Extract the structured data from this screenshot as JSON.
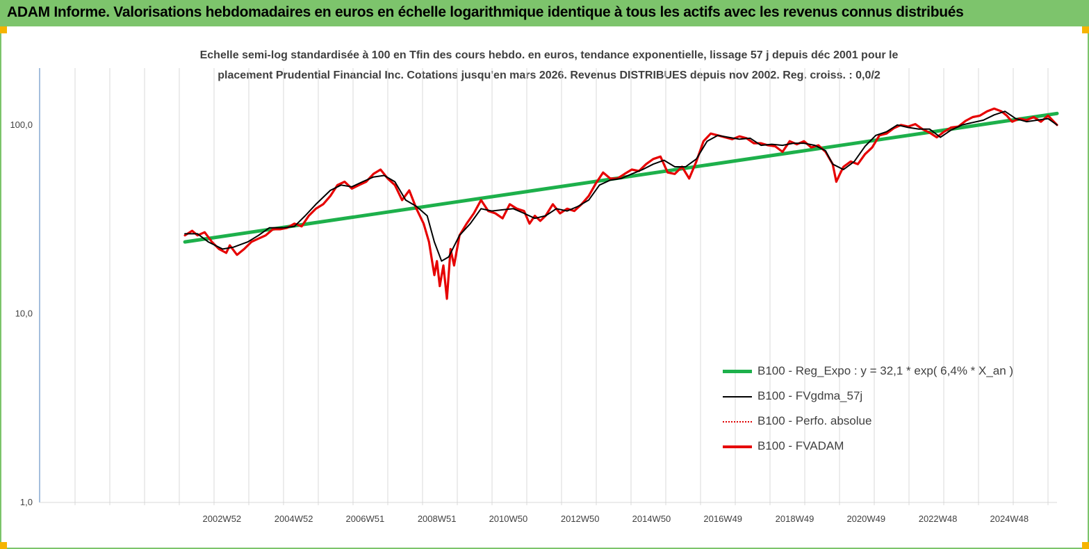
{
  "header": {
    "title": "ADAM Informe. Valorisations hebdomadaires en euros en échelle logarithmique identique à tous les actifs avec les revenus connus distribués"
  },
  "colors": {
    "header_bg": "#7dc46c",
    "accent_corner": "#f5b400",
    "trend": "#1db04b",
    "smooth": "#000000",
    "perf": "#e00000",
    "fvadam": "#e60000"
  },
  "chart_data": {
    "type": "line",
    "title": "Echelle semi-log standardisée à 100 en Tfin des cours hebdo. en euros, tendance exponentielle, lissage 57 j depuis déc 2001 pour le placement Prudential Financial Inc. Cotations jusqu'en mars 2026. Revenus DISTRIBUES depuis nov 2002. Reg. croiss. : 0,0/2",
    "title_lines": [
      "Echelle semi-log standardisée à 100 en Tfin des cours hebdo. en euros, tendance exponentielle, lissage 57 j depuis déc 2001 pour le",
      "placement Prudential Financial Inc. Cotations jusqu'en mars 2026. Revenus DISTRIBUES depuis nov 2002. Reg. croiss. : 0,0/2"
    ],
    "yscale": "log",
    "ylim": [
      1,
      200
    ],
    "y_ticks": [
      1,
      10,
      100
    ],
    "y_tick_labels": [
      "1,0",
      "10,0",
      "100,0"
    ],
    "xlim": [
      1997.9,
      2026.25
    ],
    "x_ticks": [
      2002.98,
      2004.98,
      2006.97,
      2008.97,
      2010.96,
      2012.96,
      2014.95,
      2016.94,
      2018.94,
      2020.93,
      2022.93,
      2024.92
    ],
    "x_tick_labels": [
      "2002W52",
      "2004W52",
      "2006W51",
      "2008W51",
      "2010W50",
      "2012W50",
      "2014W50",
      "2016W49",
      "2018W49",
      "2020W49",
      "2022W48",
      "2024W48"
    ],
    "grid": "vertical",
    "legend_position": "bottom-right",
    "series": [
      {
        "name": "B100 - Reg_Expo : y = 32,1 * exp( 6,4% *  X_an )",
        "style": "thick-green",
        "x": [
          2001.95,
          2026.25
        ],
        "y": [
          24,
          115
        ]
      },
      {
        "name": "B100 - FVgdma_57j",
        "style": "thin-black",
        "x": [
          2001.95,
          2002.3,
          2002.6,
          2003.0,
          2003.3,
          2003.7,
          2004.0,
          2004.3,
          2004.7,
          2005.0,
          2005.3,
          2005.6,
          2006.0,
          2006.3,
          2006.6,
          2006.9,
          2007.2,
          2007.5,
          2007.8,
          2008.1,
          2008.4,
          2008.7,
          2008.9,
          2009.1,
          2009.3,
          2009.6,
          2009.9,
          2010.2,
          2010.5,
          2010.8,
          2011.1,
          2011.4,
          2011.7,
          2012.0,
          2012.3,
          2012.6,
          2012.9,
          2013.2,
          2013.5,
          2013.8,
          2014.1,
          2014.4,
          2014.7,
          2015.0,
          2015.3,
          2015.6,
          2015.9,
          2016.2,
          2016.5,
          2016.8,
          2017.1,
          2017.4,
          2017.7,
          2018.0,
          2018.3,
          2018.6,
          2018.9,
          2019.2,
          2019.5,
          2019.8,
          2020.0,
          2020.3,
          2020.6,
          2020.9,
          2021.2,
          2021.5,
          2021.8,
          2022.1,
          2022.4,
          2022.7,
          2023.0,
          2023.3,
          2023.6,
          2023.9,
          2024.2,
          2024.5,
          2024.8,
          2025.1,
          2025.4,
          2025.7,
          2026.0,
          2026.25
        ],
        "y": [
          26.5,
          26.5,
          24,
          22,
          22.5,
          24,
          26,
          28.5,
          28.5,
          29,
          33,
          38,
          45,
          48,
          47,
          50,
          53,
          54,
          50,
          40,
          37,
          33,
          24,
          19,
          20,
          26,
          30,
          36,
          35,
          35.5,
          36,
          34,
          32,
          33,
          36,
          35,
          37,
          40,
          48,
          51,
          52,
          55,
          58,
          62,
          65,
          60,
          60,
          66,
          82,
          88,
          86,
          84,
          85,
          78,
          79,
          78,
          80,
          80,
          78,
          73,
          62,
          58,
          64,
          77,
          88,
          92,
          100,
          97,
          95,
          95,
          86,
          94,
          100,
          103,
          106,
          113,
          118,
          108,
          104,
          106,
          108,
          100
        ]
      },
      {
        "name": "B100 - Perfo. absolue",
        "style": "dotted-red",
        "x": [],
        "y": []
      },
      {
        "name": "B100 - FVADAM",
        "style": "thick-red",
        "x": [
          2001.95,
          2002.15,
          2002.3,
          2002.5,
          2002.7,
          2002.9,
          2003.1,
          2003.2,
          2003.4,
          2003.6,
          2003.8,
          2004.0,
          2004.2,
          2004.4,
          2004.6,
          2004.8,
          2005.0,
          2005.2,
          2005.4,
          2005.6,
          2005.8,
          2006.0,
          2006.2,
          2006.4,
          2006.6,
          2006.8,
          2007.0,
          2007.2,
          2007.4,
          2007.6,
          2007.8,
          2008.0,
          2008.2,
          2008.4,
          2008.6,
          2008.75,
          2008.9,
          2008.97,
          2009.05,
          2009.15,
          2009.25,
          2009.35,
          2009.45,
          2009.6,
          2009.8,
          2010.0,
          2010.2,
          2010.4,
          2010.6,
          2010.8,
          2011.0,
          2011.2,
          2011.4,
          2011.55,
          2011.7,
          2011.85,
          2012.0,
          2012.2,
          2012.4,
          2012.6,
          2012.8,
          2013.0,
          2013.2,
          2013.4,
          2013.6,
          2013.8,
          2014.0,
          2014.2,
          2014.4,
          2014.6,
          2014.8,
          2015.0,
          2015.2,
          2015.4,
          2015.6,
          2015.8,
          2016.0,
          2016.2,
          2016.4,
          2016.6,
          2016.8,
          2017.0,
          2017.2,
          2017.4,
          2017.6,
          2017.8,
          2018.0,
          2018.2,
          2018.4,
          2018.6,
          2018.8,
          2019.0,
          2019.2,
          2019.4,
          2019.6,
          2019.8,
          2020.0,
          2020.1,
          2020.2,
          2020.3,
          2020.5,
          2020.7,
          2020.9,
          2021.1,
          2021.3,
          2021.5,
          2021.7,
          2021.9,
          2022.1,
          2022.3,
          2022.5,
          2022.7,
          2022.9,
          2023.1,
          2023.3,
          2023.5,
          2023.7,
          2023.9,
          2024.1,
          2024.3,
          2024.5,
          2024.7,
          2024.85,
          2025.0,
          2025.2,
          2025.4,
          2025.6,
          2025.8,
          2026.0,
          2026.25
        ],
        "y": [
          26,
          27.5,
          26,
          27,
          24,
          22,
          21,
          23,
          20.5,
          22,
          24,
          25,
          26,
          28,
          28,
          28.5,
          30,
          29,
          33,
          36,
          38,
          42,
          48,
          50,
          46,
          48,
          50,
          55,
          58,
          52,
          48,
          40,
          45,
          36,
          30,
          24,
          16,
          19,
          14,
          18,
          12,
          22,
          18,
          26,
          30,
          34,
          40,
          35,
          34,
          32,
          38,
          36,
          35,
          30,
          33,
          31,
          33,
          38,
          34,
          36,
          35,
          38,
          42,
          49,
          56,
          52,
          52,
          55,
          58,
          57,
          62,
          66,
          68,
          56,
          55,
          60,
          52,
          64,
          82,
          90,
          88,
          86,
          84,
          87,
          85,
          80,
          80,
          78,
          77,
          72,
          82,
          79,
          82,
          76,
          78,
          72,
          62,
          50,
          55,
          60,
          64,
          62,
          70,
          76,
          88,
          90,
          96,
          100,
          98,
          101,
          95,
          91,
          86,
          92,
          97,
          98,
          105,
          110,
          112,
          118,
          122,
          118,
          112,
          104,
          108,
          106,
          110,
          104,
          112,
          100
        ]
      }
    ]
  }
}
